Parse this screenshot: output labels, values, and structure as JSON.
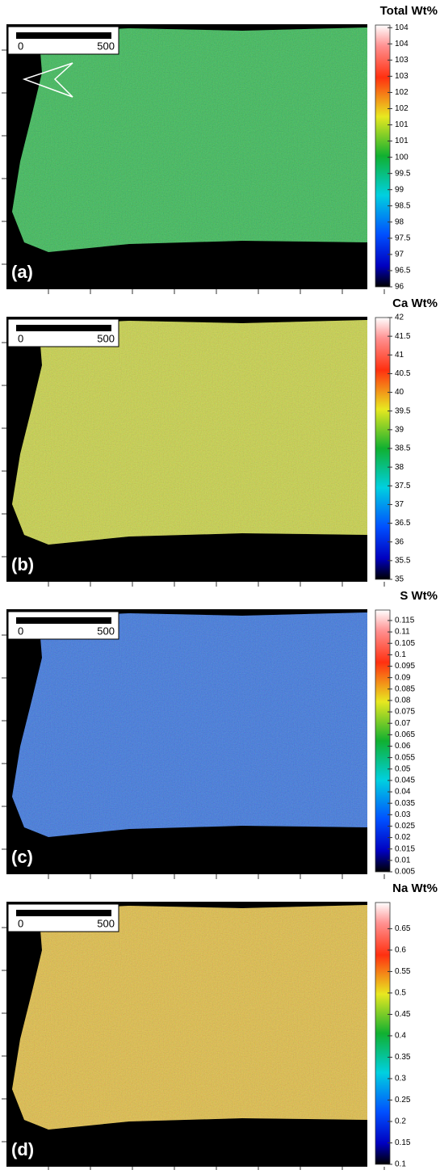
{
  "panels": [
    {
      "title": "Total Wt%",
      "label": "(a)",
      "scale_bar": [
        "0",
        "500"
      ],
      "colorbar_ticks": [
        "104",
        "104",
        "103",
        "103",
        "102",
        "102",
        "101",
        "101",
        "100",
        "99.5",
        "99",
        "98.5",
        "98",
        "97.5",
        "97",
        "96.5",
        "96"
      ]
    },
    {
      "title": "Ca Wt%",
      "label": "(b)",
      "scale_bar": [
        "0",
        "500"
      ],
      "colorbar_ticks": [
        "42",
        "41.5",
        "41",
        "40.5",
        "40",
        "39.5",
        "39",
        "38.5",
        "38",
        "37.5",
        "37",
        "36.5",
        "36",
        "35.5",
        "35"
      ]
    },
    {
      "title": "S Wt%",
      "label": "(c)",
      "scale_bar": [
        "0",
        "500"
      ],
      "colorbar_ticks": [
        "0.115",
        "0.11",
        "0.105",
        "0.1",
        "0.095",
        "0.09",
        "0.085",
        "0.08",
        "0.075",
        "0.07",
        "0.065",
        "0.06",
        "0.055",
        "0.05",
        "0.045",
        "0.04",
        "0.035",
        "0.03",
        "0.025",
        "0.02",
        "0.015",
        "0.01",
        "0.005"
      ]
    },
    {
      "title": "Na Wt%",
      "label": "(d)",
      "scale_bar": [
        "0",
        "500"
      ],
      "colorbar_ticks": [
        "0.65",
        "0.6",
        "0.55",
        "0.5",
        "0.45",
        "0.4",
        "0.35",
        "0.3",
        "0.25",
        "0.2",
        "0.15",
        "0.1"
      ]
    }
  ]
}
